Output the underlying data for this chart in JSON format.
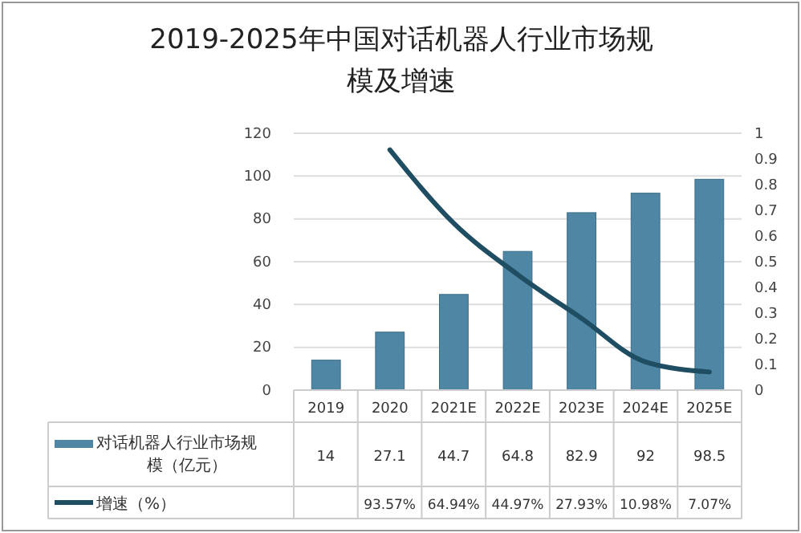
{
  "chart_data": {
    "type": "bar",
    "title": "2019-2025年中国对话机器人行业市场规模及增速",
    "categories": [
      "2019",
      "2020",
      "2021E",
      "2022E",
      "2023E",
      "2024E",
      "2025E"
    ],
    "series": [
      {
        "name": "对话机器人行业市场规模（亿元）",
        "color": "#4f86a3",
        "values": [
          14,
          27.1,
          44.7,
          64.8,
          82.9,
          92,
          98.5
        ]
      },
      {
        "name": "增速（%）",
        "type": "line",
        "axis": "y2",
        "color": "#1f4e63",
        "values": [
          null,
          0.9357,
          0.6494,
          0.4497,
          0.2793,
          0.1098,
          0.0707
        ],
        "value_labels": [
          null,
          "93.57%",
          "64.94%",
          "44.97%",
          "27.93%",
          "10.98%",
          "7.07%"
        ]
      }
    ],
    "ylim": [
      0,
      120
    ],
    "yticks": [
      0,
      20,
      40,
      60,
      80,
      100,
      120
    ],
    "y2lim": [
      0,
      1
    ],
    "y2ticks": [
      0,
      0.1,
      0.2,
      0.3,
      0.4,
      0.5,
      0.6,
      0.7,
      0.8,
      0.9,
      1
    ],
    "grid": "y",
    "legend": "bottom",
    "data_labels": true,
    "marker": "none",
    "line_style": "solid"
  }
}
